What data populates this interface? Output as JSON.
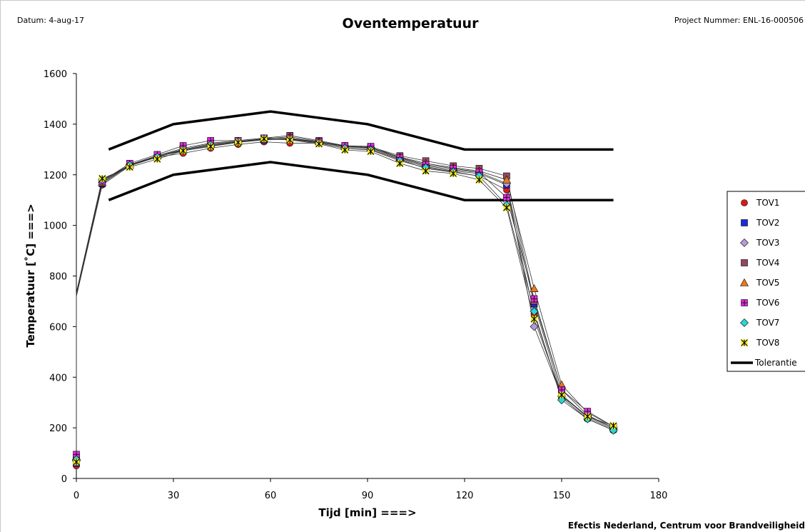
{
  "header": {
    "date": "Datum: 4-aug-17",
    "title": "Oventemperatuur",
    "project": "Project Nummer: ENL-16-000506"
  },
  "footer": "Efectis Nederland, Centrum voor Brandveiligheid",
  "chart_data": {
    "type": "scatter",
    "title": "Oventemperatuur",
    "xlabel": "Tijd [min] ===>",
    "ylabel": "Temperatuur [˚C] ===>",
    "xlim": [
      0,
      180
    ],
    "ylim": [
      0,
      1600
    ],
    "xticks": [
      0,
      30,
      60,
      90,
      120,
      150,
      180
    ],
    "yticks": [
      0,
      200,
      400,
      600,
      800,
      1000,
      1200,
      1400,
      1600
    ],
    "grid": false,
    "legend_position": "right",
    "tolerance": {
      "name": "Tolerantie",
      "upper": {
        "x": [
          10,
          30,
          60,
          90,
          120,
          166
        ],
        "y": [
          1300,
          1400,
          1450,
          1400,
          1300,
          1300
        ]
      },
      "lower": {
        "x": [
          10,
          30,
          60,
          90,
          120,
          166
        ],
        "y": [
          1100,
          1200,
          1250,
          1200,
          1100,
          1100
        ]
      }
    },
    "series": [
      {
        "name": "TOV1",
        "marker": "circle",
        "color": "#d81a1a",
        "x": [
          0,
          8,
          16.5,
          25,
          33,
          41.5,
          50,
          58,
          66,
          75,
          83,
          91,
          100,
          108,
          116.5,
          124.5,
          133,
          141.5,
          150,
          158,
          166
        ],
        "y": [
          50,
          1160,
          1235,
          1270,
          1285,
          1305,
          1320,
          1330,
          1325,
          1325,
          1305,
          1300,
          1260,
          1225,
          1210,
          1195,
          1140,
          650,
          320,
          235,
          190
        ]
      },
      {
        "name": "TOV2",
        "marker": "square",
        "color": "#1a2bd8",
        "x": [
          0,
          8,
          16.5,
          25,
          33,
          41.5,
          50,
          58,
          66,
          75,
          83,
          91,
          100,
          108,
          116.5,
          124.5,
          133,
          141.5,
          150,
          158,
          166
        ],
        "y": [
          60,
          1165,
          1238,
          1272,
          1295,
          1315,
          1328,
          1338,
          1340,
          1328,
          1310,
          1305,
          1262,
          1232,
          1215,
          1205,
          1160,
          690,
          330,
          240,
          195
        ]
      },
      {
        "name": "TOV3",
        "marker": "diamond",
        "color": "#b79bd8",
        "x": [
          0,
          8,
          16.5,
          25,
          33,
          41.5,
          50,
          58,
          66,
          75,
          83,
          91,
          100,
          108,
          116.5,
          124.5,
          133,
          141.5,
          150,
          158,
          166
        ],
        "y": [
          70,
          1170,
          1240,
          1275,
          1298,
          1318,
          1330,
          1340,
          1342,
          1330,
          1312,
          1308,
          1266,
          1236,
          1220,
          1210,
          1165,
          600,
          325,
          245,
          200
        ]
      },
      {
        "name": "TOV4",
        "marker": "square",
        "color": "#93485d",
        "x": [
          0,
          8,
          16.5,
          25,
          33,
          41.5,
          50,
          58,
          66,
          75,
          83,
          91,
          100,
          108,
          116.5,
          124.5,
          133,
          141.5,
          150,
          158,
          166
        ],
        "y": [
          80,
          1175,
          1240,
          1275,
          1305,
          1325,
          1335,
          1345,
          1355,
          1335,
          1315,
          1310,
          1275,
          1255,
          1235,
          1225,
          1195,
          700,
          350,
          250,
          200
        ]
      },
      {
        "name": "TOV5",
        "marker": "triangle",
        "color": "#e87a1e",
        "x": [
          0,
          8,
          16.5,
          25,
          33,
          41.5,
          50,
          58,
          66,
          75,
          83,
          91,
          100,
          108,
          116.5,
          124.5,
          133,
          141.5,
          150,
          158,
          166
        ],
        "y": [
          85,
          1170,
          1238,
          1275,
          1300,
          1322,
          1332,
          1342,
          1350,
          1332,
          1312,
          1306,
          1270,
          1245,
          1228,
          1215,
          1180,
          750,
          370,
          260,
          205
        ]
      },
      {
        "name": "TOV6",
        "marker": "plus-square",
        "color": "#e02ae0",
        "x": [
          0,
          8,
          16.5,
          25,
          33,
          41.5,
          50,
          58,
          66,
          75,
          83,
          91,
          100,
          108,
          116.5,
          124.5,
          133,
          141.5,
          150,
          158,
          166
        ],
        "y": [
          95,
          1175,
          1245,
          1280,
          1315,
          1335,
          1335,
          1345,
          1345,
          1330,
          1315,
          1312,
          1268,
          1240,
          1225,
          1210,
          1110,
          710,
          350,
          265,
          205
        ]
      },
      {
        "name": "TOV7",
        "marker": "diamond",
        "color": "#28d6d6",
        "x": [
          0,
          8,
          16.5,
          25,
          33,
          41.5,
          50,
          58,
          66,
          75,
          83,
          91,
          100,
          108,
          116.5,
          124.5,
          133,
          141.5,
          150,
          158,
          166
        ],
        "y": [
          75,
          1180,
          1238,
          1270,
          1298,
          1318,
          1330,
          1340,
          1340,
          1325,
          1305,
          1298,
          1255,
          1228,
          1212,
          1195,
          1080,
          660,
          310,
          235,
          190
        ]
      },
      {
        "name": "TOV8",
        "marker": "star",
        "color": "#f2ee1e",
        "x": [
          0,
          8,
          16.5,
          25,
          33,
          41.5,
          50,
          58,
          66,
          75,
          83,
          91,
          100,
          108,
          116.5,
          124.5,
          133,
          141.5,
          150,
          158,
          166
        ],
        "y": [
          65,
          1185,
          1230,
          1262,
          1295,
          1312,
          1328,
          1342,
          1338,
          1322,
          1298,
          1292,
          1245,
          1215,
          1205,
          1180,
          1070,
          630,
          330,
          245,
          208
        ]
      }
    ]
  }
}
